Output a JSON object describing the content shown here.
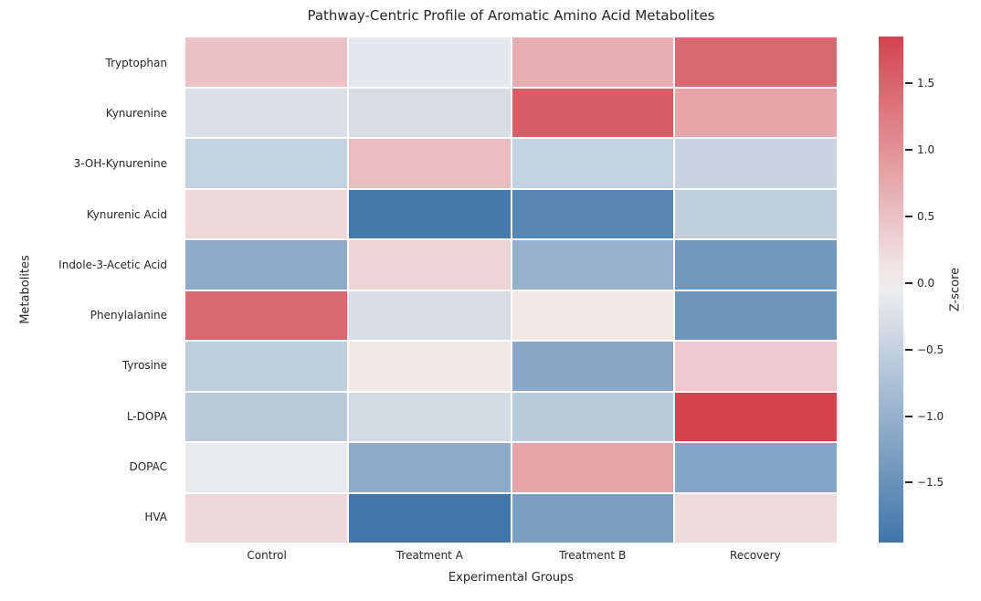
{
  "chart_data": {
    "type": "heatmap",
    "title": "Pathway-Centric Profile of Aromatic Amino Acid Metabolites",
    "xlabel": "Experimental Groups",
    "ylabel": "Metabolites",
    "colorbar_label": "Z-score",
    "columns": [
      "Control",
      "Treatment A",
      "Treatment B",
      "Recovery"
    ],
    "rows": [
      "Tryptophan",
      "Kynurenine",
      "3-OH-Kynurenine",
      "Kynurenic Acid",
      "Indole-3-Acetic Acid",
      "Phenylalanine",
      "Tyrosine",
      "L-DOPA",
      "DOPAC",
      "HVA"
    ],
    "values": [
      [
        0.5,
        -0.15,
        0.7,
        1.45
      ],
      [
        -0.25,
        -0.3,
        1.55,
        0.8
      ],
      [
        -0.5,
        0.55,
        -0.5,
        -0.45
      ],
      [
        0.25,
        -1.9,
        -1.7,
        -0.55
      ],
      [
        -1.1,
        0.3,
        -1.0,
        -1.4
      ],
      [
        1.45,
        -0.3,
        0.1,
        -1.45
      ],
      [
        -0.55,
        0.1,
        -1.15,
        0.4
      ],
      [
        -0.6,
        -0.35,
        -0.6,
        1.85
      ],
      [
        -0.1,
        -1.1,
        0.8,
        -1.2
      ],
      [
        0.25,
        -1.95,
        -1.3,
        0.2
      ]
    ],
    "zlim": [
      -1.95,
      1.85
    ],
    "colorbar_ticks": [
      "1.5",
      "1.0",
      "0.5",
      "0.0",
      "−0.5",
      "−1.0",
      "−1.5"
    ],
    "colorbar_tick_values": [
      1.5,
      1.0,
      0.5,
      0.0,
      -0.5,
      -1.0,
      -1.5
    ],
    "colors": {
      "negative_end": "#4076aa",
      "midpoint": "#f2f0f0",
      "positive_end": "#d4424e",
      "gridline": "#ffffff",
      "text": "#262626"
    },
    "legend_position": "right-colorbar",
    "grid": "white cell separators"
  }
}
